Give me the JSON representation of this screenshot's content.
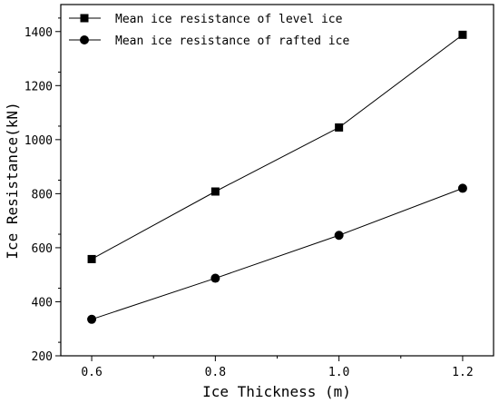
{
  "chart_data": {
    "type": "line",
    "x": [
      0.6,
      0.8,
      1.0,
      1.2
    ],
    "series": [
      {
        "name": "Mean ice resistance of level ice",
        "marker": "square",
        "values": [
          558,
          808,
          1045,
          1388
        ]
      },
      {
        "name": "Mean ice resistance of rafted ice",
        "marker": "circle",
        "values": [
          335,
          487,
          646,
          820
        ]
      }
    ],
    "xlabel": "Ice Thickness (m)",
    "ylabel": "Ice Resistance(kN)",
    "xticks": [
      "0.6",
      "0.8",
      "1.0",
      "1.2"
    ],
    "yticks": [
      "200",
      "400",
      "600",
      "800",
      "1000",
      "1200",
      "1400"
    ],
    "xlim": [
      0.55,
      1.25
    ],
    "ylim": [
      200,
      1500
    ],
    "grid": false,
    "legend_position": "top-left",
    "colors": {
      "line": "#000000",
      "marker": "#000000"
    }
  }
}
